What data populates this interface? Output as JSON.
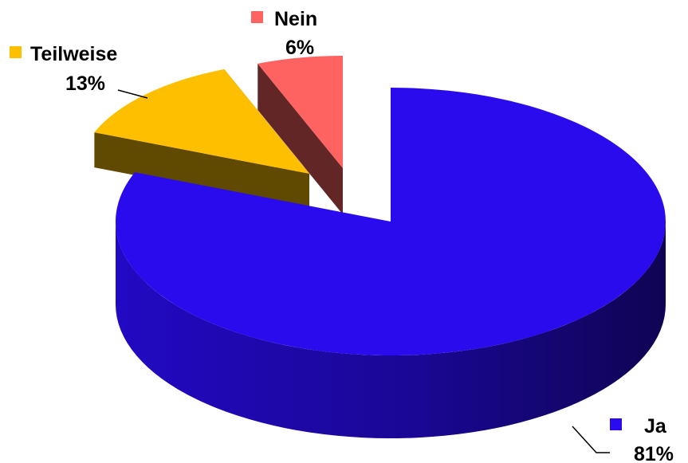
{
  "chart_data": {
    "type": "pie",
    "style": "3d-exploded",
    "categories": [
      "Ja",
      "Teilweise",
      "Nein"
    ],
    "values": [
      81,
      13,
      6
    ],
    "value_labels": [
      "81%",
      "13%",
      "6%"
    ],
    "colors": [
      "#2A0BEE",
      "#FDBF00",
      "#FF6361"
    ],
    "title": "",
    "legend": "inline-with-labels"
  }
}
